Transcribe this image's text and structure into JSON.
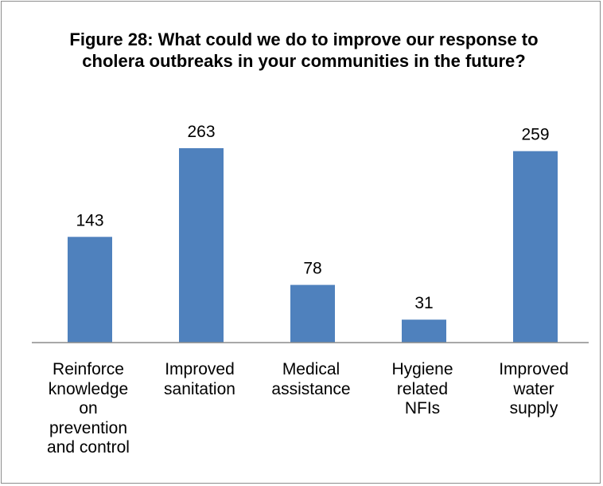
{
  "chart_data": {
    "type": "bar",
    "title": "Figure 28: What could we do to improve our response to cholera outbreaks in your communities in the future?",
    "categories": [
      "Reinforce knowledge on prevention and control",
      "Improved sanitation",
      "Medical assistance",
      "Hygiene related NFIs",
      "Improved water supply"
    ],
    "category_lines": [
      [
        "Reinforce",
        "knowledge",
        "on",
        "prevention",
        "and control"
      ],
      [
        "Improved",
        "sanitation"
      ],
      [
        "Medical",
        "assistance"
      ],
      [
        "Hygiene",
        "related",
        "NFIs"
      ],
      [
        "Improved",
        "water",
        "supply"
      ]
    ],
    "values": [
      143,
      263,
      78,
      31,
      259
    ],
    "data_labels": [
      "143",
      "263",
      "78",
      "31",
      "259"
    ],
    "xlabel": "",
    "ylabel": "",
    "ylim": [
      0,
      263
    ],
    "bar_color": "#4f81bd",
    "grid": false,
    "legend": "none"
  }
}
